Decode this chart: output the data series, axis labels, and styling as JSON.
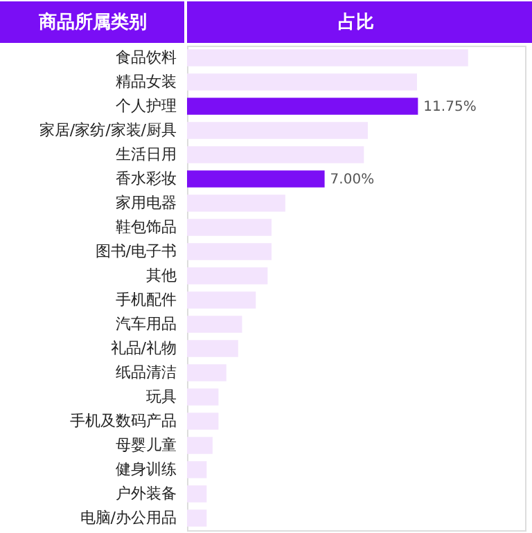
{
  "chart_data": {
    "type": "bar",
    "orientation": "horizontal",
    "ylabel": "商品所属类别",
    "xlabel": "占比",
    "categories": [
      "食品饮料",
      "精品女装",
      "个人护理",
      "家居/家纺/家装/厨具",
      "生活日用",
      "香水彩妆",
      "家用电器",
      "鞋包饰品",
      "图书/电子书",
      "其他",
      "手机配件",
      "汽车用品",
      "礼品/礼物",
      "纸品清洁",
      "玩具",
      "手机及数码产品",
      "母婴儿童",
      "健身训练",
      "户外装备",
      "电脑/办公用品"
    ],
    "values": [
      14.3,
      11.7,
      11.75,
      9.2,
      9.0,
      7.0,
      5.0,
      4.3,
      4.3,
      4.1,
      3.5,
      2.8,
      2.6,
      2.0,
      1.6,
      1.6,
      1.3,
      1.0,
      1.0,
      1.0
    ],
    "colors": [
      "#f3e4fd",
      "#f3e4fd",
      "#7b0ef5",
      "#f3e4fd",
      "#f3e4fd",
      "#7b0ef5",
      "#f3e4fd",
      "#f3e4fd",
      "#f3e4fd",
      "#f3e4fd",
      "#f3e4fd",
      "#f3e4fd",
      "#f3e4fd",
      "#f3e4fd",
      "#f3e4fd",
      "#f3e4fd",
      "#f3e4fd",
      "#f3e4fd",
      "#f3e4fd",
      "#f3e4fd"
    ],
    "value_labels": [
      null,
      null,
      "11.75%",
      null,
      null,
      "7.00%",
      null,
      null,
      null,
      null,
      null,
      null,
      null,
      null,
      null,
      null,
      null,
      null,
      null,
      null
    ],
    "xlim": [
      0,
      17.2
    ],
    "tick_labels": "y",
    "grid": false
  }
}
